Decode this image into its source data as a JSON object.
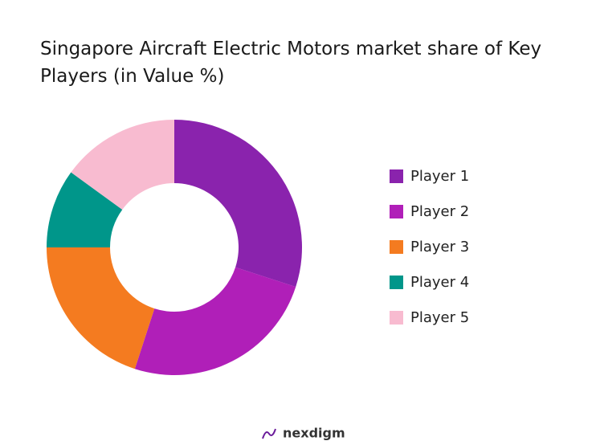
{
  "chart_data": {
    "type": "pie",
    "title": "Singapore Aircraft Electric Motors market share of Key Players (in Value %)",
    "categories": [
      "Player 1",
      "Player 2",
      "Player 3",
      "Player 4",
      "Player 5"
    ],
    "values": [
      30,
      25,
      20,
      10,
      15
    ],
    "colors": [
      "#8a23ad",
      "#b01fb8",
      "#f47b20",
      "#00968a",
      "#f8bbd0"
    ],
    "donut": true,
    "legend": "right"
  },
  "brand": "nexdigm"
}
